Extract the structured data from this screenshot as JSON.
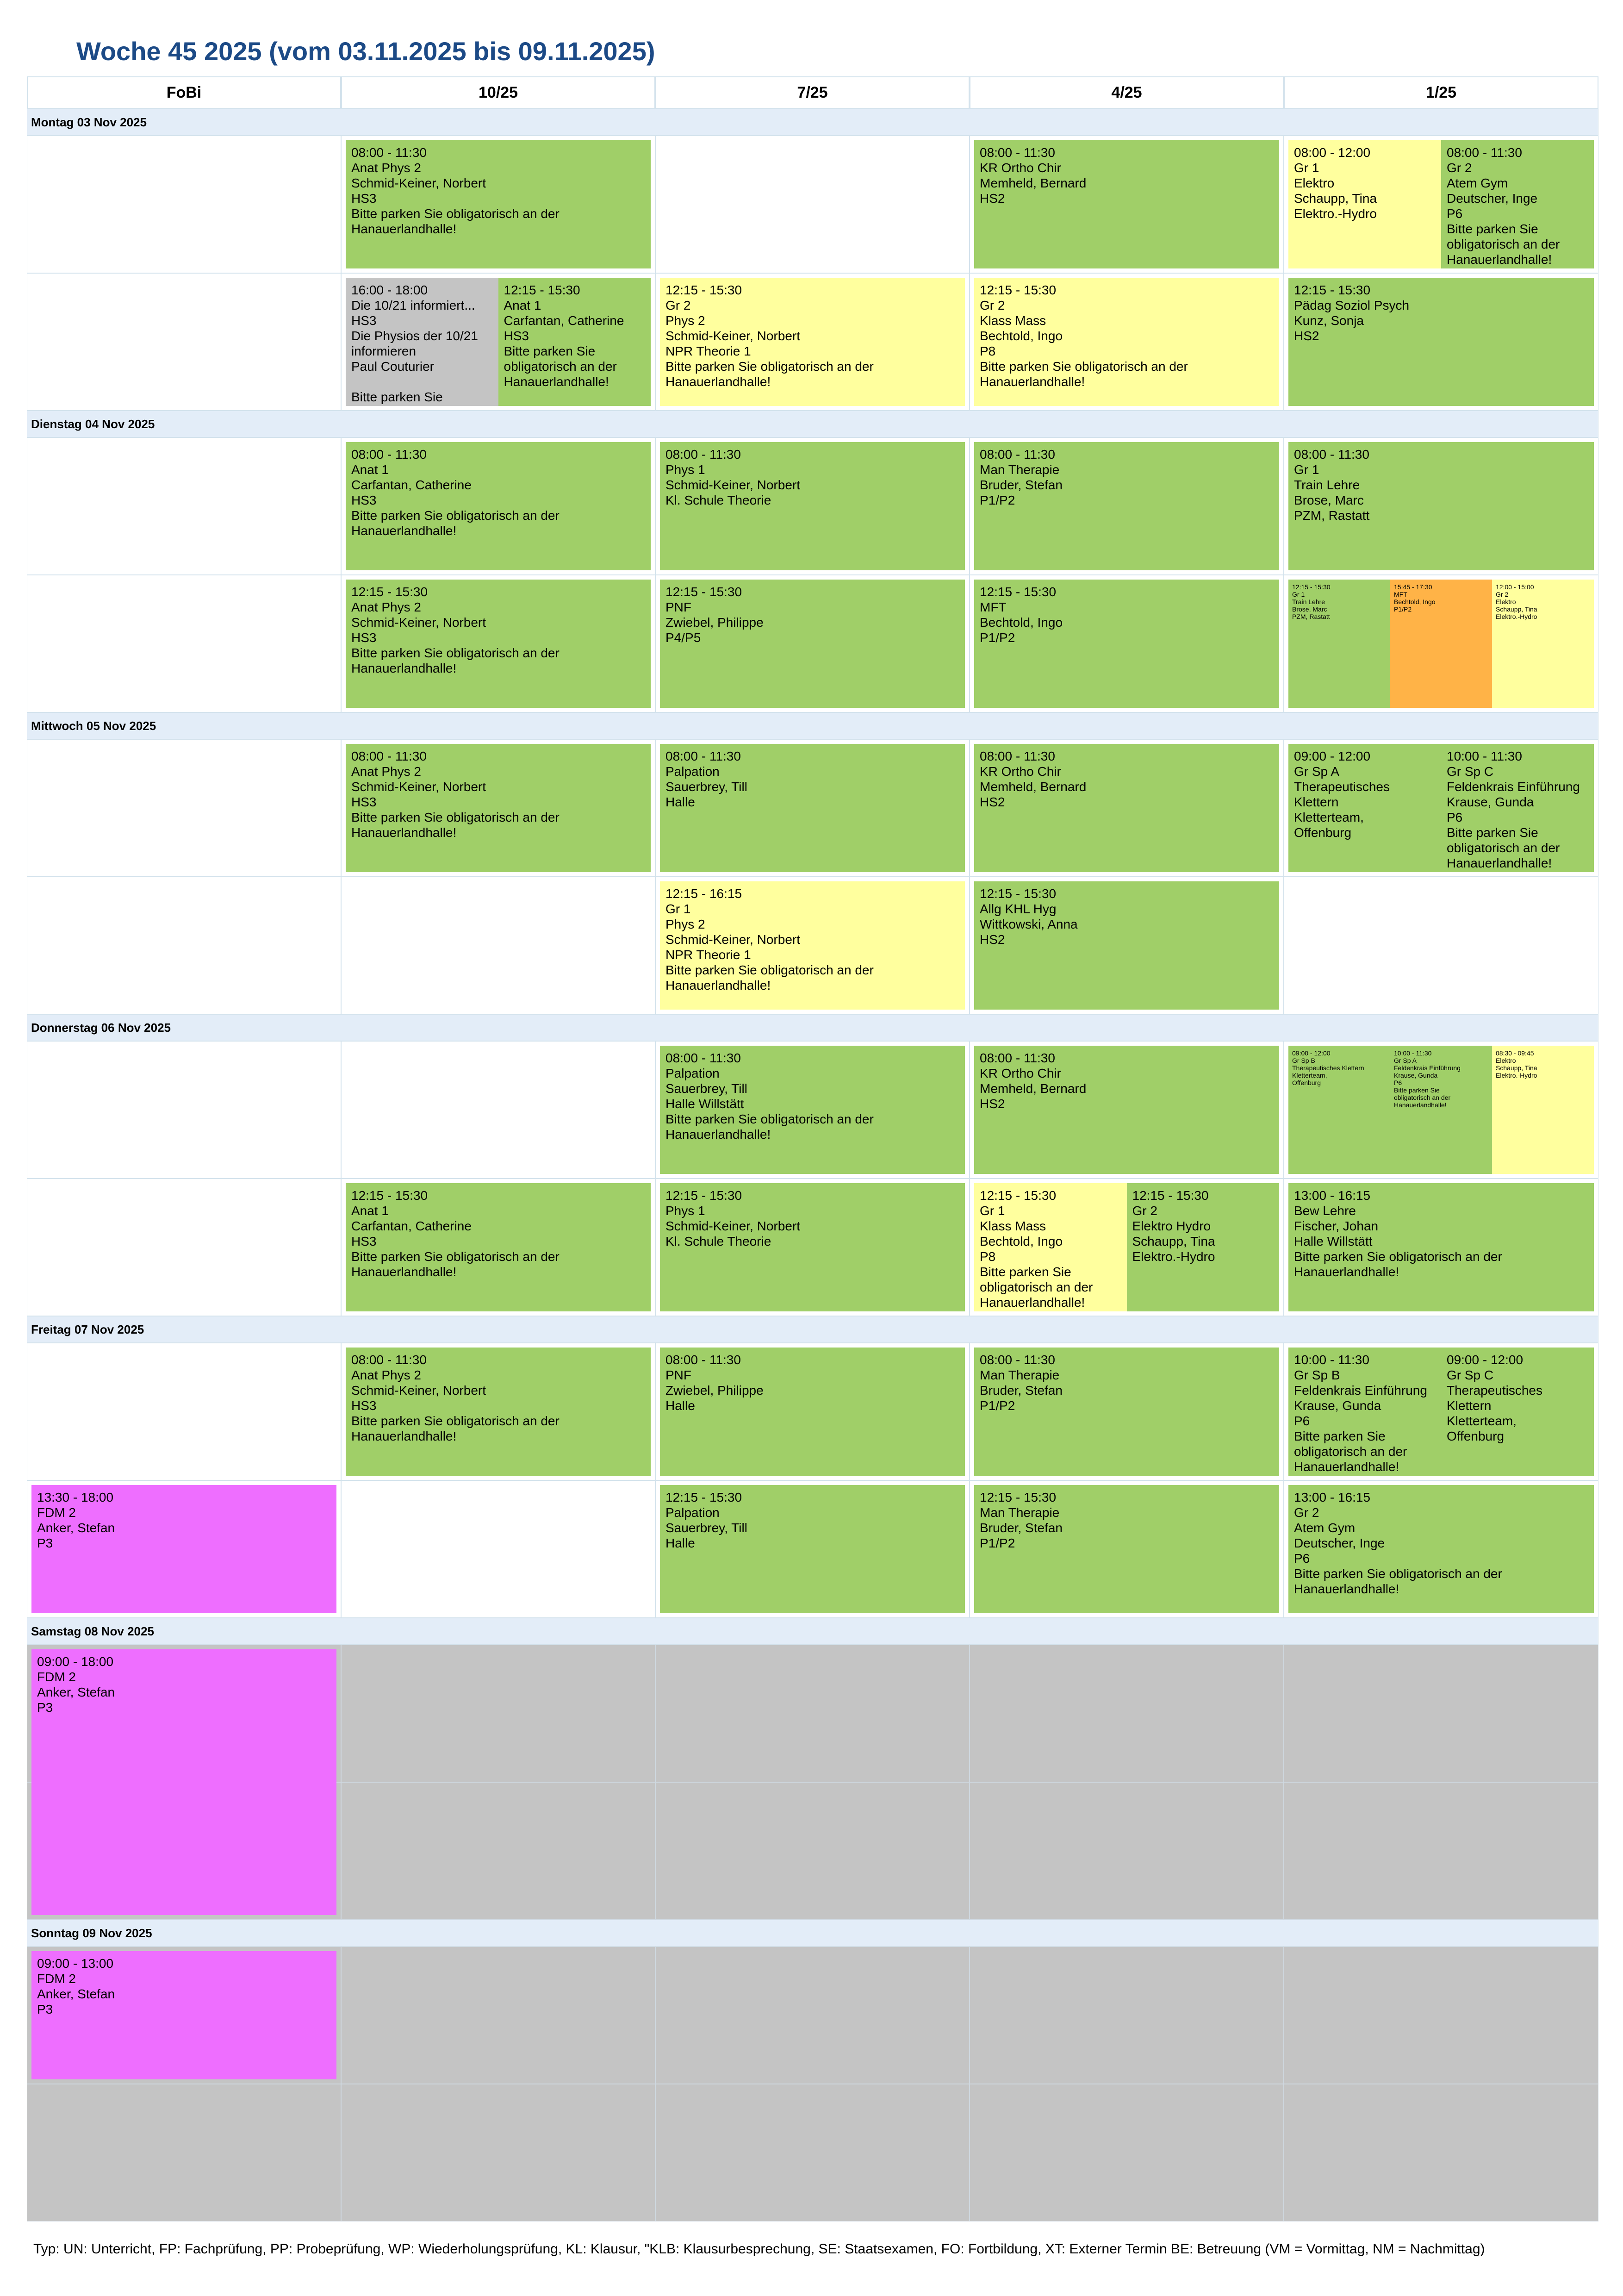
{
  "title": "Woche 45 2025 (vom 03.11.2025 bis 09.11.2025)",
  "columns": [
    "FoBi",
    "10/25",
    "7/25",
    "4/25",
    "1/25"
  ],
  "days": [
    {
      "label": "Montag 03 Nov 2025",
      "weekend": false,
      "rows": [
        [
          [],
          [
            {
              "color": "green",
              "lines": [
                "08:00 - 11:30",
                "Anat Phys 2",
                "Schmid-Keiner, Norbert",
                "HS3",
                "Bitte parken Sie obligatorisch an der",
                "Hanauerlandhalle!"
              ]
            }
          ],
          [],
          [
            {
              "color": "green",
              "lines": [
                "08:00 - 11:30",
                "KR Ortho Chir",
                "Memheld, Bernard",
                "HS2"
              ]
            }
          ],
          [
            {
              "color": "yellow",
              "lines": [
                "08:00 - 12:00",
                "Gr 1",
                "Elektro",
                "Schaupp, Tina",
                "Elektro.-Hydro"
              ]
            },
            {
              "color": "green",
              "lines": [
                "08:00 - 11:30",
                "Gr 2",
                "Atem Gym",
                "Deutscher, Inge",
                "P6",
                "Bitte parken Sie",
                "obligatorisch an der",
                "Hanauerlandhalle!"
              ]
            }
          ]
        ],
        [
          [],
          [
            {
              "color": "gray",
              "lines": [
                "16:00 - 18:00",
                "Die 10/21 informiert...",
                "HS3",
                "Die Physios der 10/21",
                "informieren",
                "Paul Couturier",
                "",
                "Bitte parken Sie"
              ]
            },
            {
              "color": "green",
              "lines": [
                "12:15 - 15:30",
                "Anat 1",
                "Carfantan, Catherine",
                "HS3",
                "Bitte parken Sie",
                "obligatorisch an der",
                "Hanauerlandhalle!"
              ]
            }
          ],
          [
            {
              "color": "yellow",
              "lines": [
                "12:15 - 15:30",
                "Gr 2",
                "Phys 2",
                "Schmid-Keiner, Norbert",
                "NPR Theorie 1",
                "Bitte parken Sie obligatorisch an der",
                "Hanauerlandhalle!"
              ]
            }
          ],
          [
            {
              "color": "yellow",
              "lines": [
                "12:15 - 15:30",
                "Gr 2",
                "Klass Mass",
                "Bechtold, Ingo",
                "P8",
                "Bitte parken Sie obligatorisch an der",
                "Hanauerlandhalle!"
              ]
            }
          ],
          [
            {
              "color": "green",
              "lines": [
                "12:15 - 15:30",
                "Pädag Soziol Psych",
                "Kunz, Sonja",
                "HS2"
              ]
            }
          ]
        ]
      ]
    },
    {
      "label": "Dienstag 04 Nov 2025",
      "weekend": false,
      "rows": [
        [
          [],
          [
            {
              "color": "green",
              "lines": [
                "08:00 - 11:30",
                "Anat 1",
                "Carfantan, Catherine",
                "HS3",
                "Bitte parken Sie obligatorisch an der",
                "Hanauerlandhalle!"
              ]
            }
          ],
          [
            {
              "color": "green",
              "lines": [
                "08:00 - 11:30",
                "Phys 1",
                "Schmid-Keiner, Norbert",
                "Kl. Schule Theorie"
              ]
            }
          ],
          [
            {
              "color": "green",
              "lines": [
                "08:00 - 11:30",
                "Man Therapie",
                "Bruder, Stefan",
                "P1/P2"
              ]
            }
          ],
          [
            {
              "color": "green",
              "lines": [
                "08:00 - 11:30",
                "Gr 1",
                "Train Lehre",
                "Brose, Marc",
                "PZM, Rastatt"
              ]
            }
          ]
        ],
        [
          [],
          [
            {
              "color": "green",
              "lines": [
                "12:15 - 15:30",
                "Anat Phys 2",
                "Schmid-Keiner, Norbert",
                "HS3",
                "Bitte parken Sie obligatorisch an der",
                "Hanauerlandhalle!"
              ]
            }
          ],
          [
            {
              "color": "green",
              "lines": [
                "12:15 - 15:30",
                "PNF",
                "Zwiebel, Philippe",
                "P4/P5"
              ]
            }
          ],
          [
            {
              "color": "green",
              "lines": [
                "12:15 - 15:30",
                "MFT",
                "Bechtold, Ingo",
                "P1/P2"
              ]
            }
          ],
          [
            {
              "color": "green",
              "small": true,
              "lines": [
                "12:15 - 15:30",
                "Gr 1",
                "Train Lehre",
                "Brose, Marc",
                "PZM, Rastatt"
              ]
            },
            {
              "color": "orange",
              "small": true,
              "lines": [
                "15:45 - 17:30",
                "MFT",
                "Bechtold, Ingo",
                "P1/P2"
              ]
            },
            {
              "color": "yellow",
              "small": true,
              "lines": [
                "12:00 - 15:00",
                "Gr 2",
                "Elektro",
                "Schaupp, Tina",
                "Elektro.-Hydro"
              ]
            }
          ]
        ]
      ]
    },
    {
      "label": "Mittwoch 05 Nov 2025",
      "weekend": false,
      "rows": [
        [
          [],
          [
            {
              "color": "green",
              "lines": [
                "08:00 - 11:30",
                "Anat Phys 2",
                "Schmid-Keiner, Norbert",
                "HS3",
                "Bitte parken Sie obligatorisch an der",
                "Hanauerlandhalle!"
              ]
            }
          ],
          [
            {
              "color": "green",
              "lines": [
                "08:00 - 11:30",
                "Palpation",
                "Sauerbrey, Till",
                "Halle"
              ]
            }
          ],
          [
            {
              "color": "green",
              "lines": [
                "08:00 - 11:30",
                "KR Ortho Chir",
                "Memheld, Bernard",
                "HS2"
              ]
            }
          ],
          [
            {
              "color": "green",
              "lines": [
                "09:00 - 12:00",
                "Gr Sp A",
                "Therapeutisches",
                "Klettern",
                "Kletterteam,",
                "Offenburg"
              ]
            },
            {
              "color": "green",
              "lines": [
                "10:00 - 11:30",
                "Gr Sp C",
                "Feldenkrais Einführung",
                "Krause, Gunda",
                "P6",
                "Bitte parken Sie",
                "obligatorisch an der",
                "Hanauerlandhalle!"
              ]
            }
          ]
        ],
        [
          [],
          [],
          [
            {
              "color": "yellow",
              "lines": [
                "12:15 - 16:15",
                "Gr 1",
                "Phys 2",
                "Schmid-Keiner, Norbert",
                "NPR Theorie 1",
                "Bitte parken Sie obligatorisch an der",
                "Hanauerlandhalle!"
              ]
            }
          ],
          [
            {
              "color": "green",
              "lines": [
                "12:15 - 15:30",
                "Allg KHL Hyg",
                "Wittkowski, Anna",
                "HS2"
              ]
            }
          ],
          []
        ]
      ]
    },
    {
      "label": "Donnerstag 06 Nov 2025",
      "weekend": false,
      "rows": [
        [
          [],
          [],
          [
            {
              "color": "green",
              "lines": [
                "08:00 - 11:30",
                "Palpation",
                "Sauerbrey, Till",
                "Halle Willstätt",
                "Bitte parken Sie obligatorisch an der",
                "Hanauerlandhalle!"
              ]
            }
          ],
          [
            {
              "color": "green",
              "lines": [
                "08:00 - 11:30",
                "KR Ortho Chir",
                "Memheld, Bernard",
                "HS2"
              ]
            }
          ],
          [
            {
              "color": "green",
              "small": true,
              "lines": [
                "09:00 - 12:00",
                "Gr Sp B",
                "Therapeutisches Klettern",
                "Kletterteam,",
                "Offenburg"
              ]
            },
            {
              "color": "green",
              "small": true,
              "lines": [
                "10:00 - 11:30",
                "Gr Sp A",
                "Feldenkrais Einführung",
                "Krause, Gunda",
                "P6",
                "Bitte parken Sie",
                "obligatorisch an der",
                "Hanauerlandhalle!"
              ]
            },
            {
              "color": "yellow",
              "small": true,
              "lines": [
                "08:30 - 09:45",
                "Elektro",
                "Schaupp, Tina",
                "Elektro.-Hydro"
              ]
            }
          ]
        ],
        [
          [],
          [
            {
              "color": "green",
              "lines": [
                "12:15 - 15:30",
                "Anat 1",
                "Carfantan, Catherine",
                "HS3",
                "Bitte parken Sie obligatorisch an der",
                "Hanauerlandhalle!"
              ]
            }
          ],
          [
            {
              "color": "green",
              "lines": [
                "12:15 - 15:30",
                "Phys 1",
                "Schmid-Keiner, Norbert",
                "Kl. Schule Theorie"
              ]
            }
          ],
          [
            {
              "color": "yellow",
              "lines": [
                "12:15 - 15:30",
                "Gr 1",
                "Klass Mass",
                "Bechtold, Ingo",
                "P8",
                "Bitte parken Sie",
                "obligatorisch an der",
                "Hanauerlandhalle!"
              ]
            },
            {
              "color": "green",
              "lines": [
                "12:15 - 15:30",
                "Gr 2",
                "Elektro Hydro",
                "Schaupp, Tina",
                "Elektro.-Hydro"
              ]
            }
          ],
          [
            {
              "color": "green",
              "lines": [
                "13:00 - 16:15",
                "Bew Lehre",
                "Fischer, Johan",
                "Halle Willstätt",
                "Bitte parken Sie obligatorisch an der",
                "Hanauerlandhalle!"
              ]
            }
          ]
        ]
      ]
    },
    {
      "label": "Freitag 07 Nov 2025",
      "weekend": false,
      "rows": [
        [
          [],
          [
            {
              "color": "green",
              "lines": [
                "08:00 - 11:30",
                "Anat Phys 2",
                "Schmid-Keiner, Norbert",
                "HS3",
                "Bitte parken Sie obligatorisch an der",
                "Hanauerlandhalle!"
              ]
            }
          ],
          [
            {
              "color": "green",
              "lines": [
                "08:00 - 11:30",
                "PNF",
                "Zwiebel, Philippe",
                "Halle"
              ]
            }
          ],
          [
            {
              "color": "green",
              "lines": [
                "08:00 - 11:30",
                "Man Therapie",
                "Bruder, Stefan",
                "P1/P2"
              ]
            }
          ],
          [
            {
              "color": "green",
              "lines": [
                "10:00 - 11:30",
                "Gr Sp B",
                "Feldenkrais Einführung",
                "Krause, Gunda",
                "P6",
                "Bitte parken Sie",
                "obligatorisch an der",
                "Hanauerlandhalle!"
              ]
            },
            {
              "color": "green",
              "lines": [
                "09:00 - 12:00",
                "Gr Sp C",
                "Therapeutisches",
                "Klettern",
                "Kletterteam,",
                "Offenburg"
              ]
            }
          ]
        ],
        [
          [
            {
              "color": "magenta",
              "lines": [
                "13:30 - 18:00",
                "FDM 2",
                "Anker, Stefan",
                "P3"
              ]
            }
          ],
          [],
          [
            {
              "color": "green",
              "lines": [
                "12:15 - 15:30",
                "Palpation",
                "Sauerbrey, Till",
                "Halle"
              ]
            }
          ],
          [
            {
              "color": "green",
              "lines": [
                "12:15 - 15:30",
                "Man Therapie",
                "Bruder, Stefan",
                "P1/P2"
              ]
            }
          ],
          [
            {
              "color": "green",
              "lines": [
                "13:00 - 16:15",
                "Gr 2",
                "Atem Gym",
                "Deutscher, Inge",
                "P6",
                "Bitte parken Sie obligatorisch an der",
                "Hanauerlandhalle!"
              ]
            }
          ]
        ]
      ]
    },
    {
      "label": "Samstag 08 Nov 2025",
      "weekend": true,
      "rows": [
        [
          [
            {
              "color": "magenta",
              "span": 2,
              "lines": [
                "09:00 - 18:00",
                "FDM 2",
                "Anker, Stefan",
                "P3"
              ]
            }
          ],
          [],
          [],
          [],
          []
        ],
        [
          [],
          [],
          [],
          [],
          []
        ]
      ]
    },
    {
      "label": "Sonntag 09 Nov 2025",
      "weekend": true,
      "rows": [
        [
          [
            {
              "color": "magenta",
              "lines": [
                "09:00 - 13:00",
                "FDM 2",
                "Anker, Stefan",
                "P3"
              ]
            }
          ],
          [],
          [],
          [],
          []
        ],
        [
          [],
          [],
          [],
          [],
          []
        ]
      ]
    }
  ],
  "footer": "Typ: UN: Unterricht, FP: Fachprüfung, PP: Probeprüfung, WP: Wiederholungsprüfung, KL: Klausur, \"KLB: Klausurbesprechung, SE: Staatsexamen, FO: Fortbildung, XT: Externer Termin BE: Betreuung (VM = Vormittag, NM = Nachmittag)"
}
